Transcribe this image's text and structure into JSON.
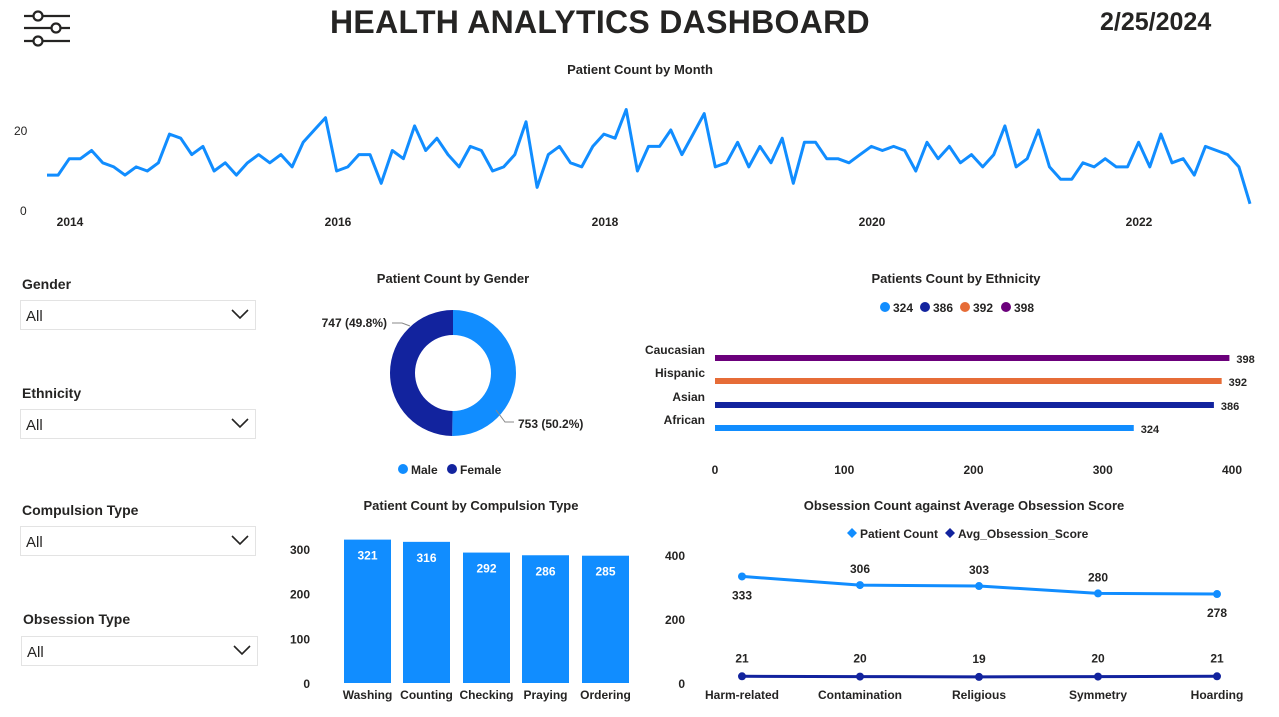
{
  "header": {
    "title": "HEALTH ANALYTICS DASHBOARD",
    "date": "2/25/2024",
    "menu_icon": "sliders-icon"
  },
  "colors": {
    "blue": "#118DFF",
    "dark_blue": "#12239E",
    "orange": "#E66C37",
    "purple": "#6B007B",
    "text": "#252423"
  },
  "slicers": [
    {
      "label": "Gender",
      "value": "All"
    },
    {
      "label": "Ethnicity",
      "value": "All"
    },
    {
      "label": "Compulsion Type",
      "value": "All"
    },
    {
      "label": "Obsession Type",
      "value": "All"
    }
  ],
  "chart_data": [
    {
      "id": "monthly",
      "type": "line",
      "title": "Patient Count by Month",
      "x_tick_labels": [
        "2014",
        "2016",
        "2018",
        "2020",
        "2022"
      ],
      "y_tick_labels": [
        "0",
        "20"
      ],
      "ylim": [
        0,
        20
      ],
      "start": "2013-11",
      "series": [
        {
          "values": [
            9,
            9,
            13,
            13,
            15,
            12,
            11,
            9,
            11,
            10,
            12,
            19,
            18,
            14,
            16,
            10,
            12,
            9,
            12,
            14,
            12,
            14,
            11,
            17,
            20,
            23,
            10,
            11,
            14,
            14,
            7,
            15,
            13,
            21,
            15,
            18,
            14,
            11,
            16,
            15,
            10,
            11,
            14,
            22,
            6,
            14,
            16,
            12,
            11,
            16,
            19,
            18,
            25,
            10,
            16,
            16,
            20,
            14,
            19,
            24,
            11,
            12,
            17,
            11,
            16,
            12,
            18,
            7,
            17,
            17,
            13,
            13,
            12,
            14,
            16,
            15,
            16,
            15,
            10,
            17,
            13,
            16,
            12,
            14,
            11,
            14,
            21,
            11,
            13,
            20,
            11,
            8,
            8,
            12,
            11,
            13,
            11,
            11,
            17,
            11,
            19,
            12,
            13,
            9,
            16,
            15,
            14,
            11,
            2
          ]
        }
      ]
    },
    {
      "id": "gender",
      "type": "pie",
      "title": "Patient Count by Gender",
      "legend": "bottom",
      "slices": [
        {
          "name": "Male",
          "value": 753,
          "label": "753 (50.2%)",
          "color": "#118DFF"
        },
        {
          "name": "Female",
          "value": 747,
          "label": "747 (49.8%)",
          "color": "#12239E"
        }
      ]
    },
    {
      "id": "ethnicity",
      "type": "bar",
      "title": "Patients Count by Ethnicity",
      "orientation": "horizontal",
      "legend": "top",
      "legend_entries": [
        "324",
        "386",
        "392",
        "398"
      ],
      "categories": [
        "Caucasian",
        "Hispanic",
        "Asian",
        "African"
      ],
      "values": [
        398,
        392,
        386,
        324
      ],
      "bar_colors": [
        "#6B007B",
        "#E66C37",
        "#12239E",
        "#118DFF"
      ],
      "legend_colors": [
        "#118DFF",
        "#12239E",
        "#E66C37",
        "#6B007B"
      ],
      "xlim": [
        0,
        400
      ],
      "x_tick_labels": [
        "0",
        "100",
        "200",
        "300",
        "400"
      ]
    },
    {
      "id": "compulsion",
      "type": "bar",
      "title": "Patient Count by Compulsion Type",
      "categories": [
        "Washing",
        "Counting",
        "Checking",
        "Praying",
        "Ordering"
      ],
      "values": [
        321,
        316,
        292,
        286,
        285
      ],
      "ylim": [
        0,
        300
      ],
      "y_tick_labels": [
        "0",
        "100",
        "200",
        "300"
      ],
      "color": "#118DFF"
    },
    {
      "id": "obsession",
      "type": "line",
      "title": "Obsession Count against Average Obsession Score",
      "legend": "top",
      "categories": [
        "Harm-related",
        "Contamination",
        "Religious",
        "Symmetry",
        "Hoarding"
      ],
      "ylim": [
        0,
        400
      ],
      "y_tick_labels": [
        "0",
        "200",
        "400"
      ],
      "series": [
        {
          "name": "Patient Count",
          "values": [
            333,
            306,
            303,
            280,
            278
          ],
          "color": "#118DFF"
        },
        {
          "name": "Avg_Obsession_Score",
          "values": [
            21,
            20,
            19,
            20,
            21
          ],
          "color": "#12239E"
        }
      ]
    }
  ]
}
